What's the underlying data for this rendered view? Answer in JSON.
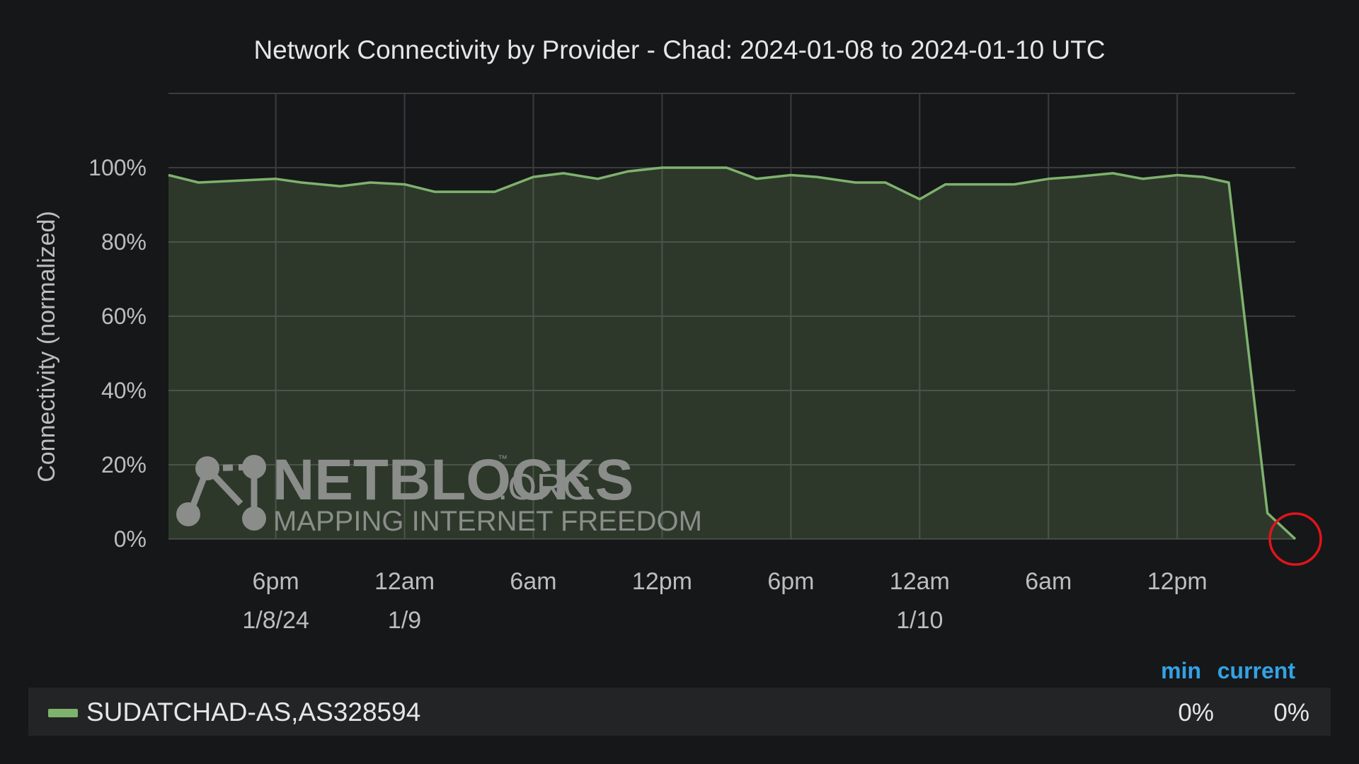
{
  "chart_data": {
    "type": "area",
    "title": "Network Connectivity by Provider - Chad: 2024-01-08 to 2024-01-10 UTC",
    "ylabel": "Connectivity (normalized)",
    "xlabel": "",
    "ylim": [
      0,
      100
    ],
    "y_ticks": [
      "0%",
      "20%",
      "40%",
      "60%",
      "80%",
      "100%"
    ],
    "x_range_utc": [
      "2024-01-08 13:00",
      "2024-01-10 17:30"
    ],
    "x_ticks": [
      {
        "time": "2024-01-08 18:00",
        "label": "6pm",
        "sublabel": "1/8/24"
      },
      {
        "time": "2024-01-09 00:00",
        "label": "12am",
        "sublabel": "1/9"
      },
      {
        "time": "2024-01-09 06:00",
        "label": "6am",
        "sublabel": ""
      },
      {
        "time": "2024-01-09 12:00",
        "label": "12pm",
        "sublabel": ""
      },
      {
        "time": "2024-01-09 18:00",
        "label": "6pm",
        "sublabel": ""
      },
      {
        "time": "2024-01-10 00:00",
        "label": "12am",
        "sublabel": "1/10"
      },
      {
        "time": "2024-01-10 06:00",
        "label": "6am",
        "sublabel": ""
      },
      {
        "time": "2024-01-10 12:00",
        "label": "12pm",
        "sublabel": ""
      }
    ],
    "grid": true,
    "legend_placement": "bottom",
    "series": [
      {
        "name": "SUDATCHAD-AS,AS328594",
        "color": "#7eb26d",
        "x": [
          "2024-01-08 13:00",
          "2024-01-08 14:24",
          "2024-01-08 16:12",
          "2024-01-08 18:00",
          "2024-01-08 19:12",
          "2024-01-08 21:00",
          "2024-01-08 22:24",
          "2024-01-09 00:00",
          "2024-01-09 01:24",
          "2024-01-09 03:00",
          "2024-01-09 04:12",
          "2024-01-09 06:00",
          "2024-01-09 07:24",
          "2024-01-09 09:00",
          "2024-01-09 10:24",
          "2024-01-09 12:00",
          "2024-01-09 13:12",
          "2024-01-09 15:00",
          "2024-01-09 16:24",
          "2024-01-09 18:00",
          "2024-01-09 19:12",
          "2024-01-09 21:00",
          "2024-01-09 22:24",
          "2024-01-10 00:00",
          "2024-01-10 01:12",
          "2024-01-10 03:00",
          "2024-01-10 04:24",
          "2024-01-10 06:00",
          "2024-01-10 07:12",
          "2024-01-10 09:00",
          "2024-01-10 10:24",
          "2024-01-10 12:00",
          "2024-01-10 13:12",
          "2024-01-10 14:24",
          "2024-01-10 16:12",
          "2024-01-10 17:30"
        ],
        "values": [
          98,
          96,
          96.5,
          97,
          96,
          95,
          96,
          95.5,
          93.5,
          93.5,
          93.5,
          97.5,
          98.5,
          97,
          99,
          100,
          100,
          100,
          97,
          98,
          97.5,
          96,
          96,
          91.5,
          95.5,
          95.5,
          95.5,
          97,
          97.5,
          98.5,
          97,
          98,
          97.5,
          96,
          7,
          0
        ],
        "min": "0%",
        "current": "0%"
      }
    ],
    "annotations": [
      {
        "type": "circle",
        "color": "#e0141c",
        "at": {
          "series": 0,
          "point": "last"
        }
      }
    ]
  },
  "watermark": {
    "brand": "NETBLOCKS",
    "tld": ".ORG",
    "tm": "™",
    "tagline": "MAPPING INTERNET FREEDOM"
  },
  "legend": {
    "min_header": "min",
    "current_header": "current"
  }
}
